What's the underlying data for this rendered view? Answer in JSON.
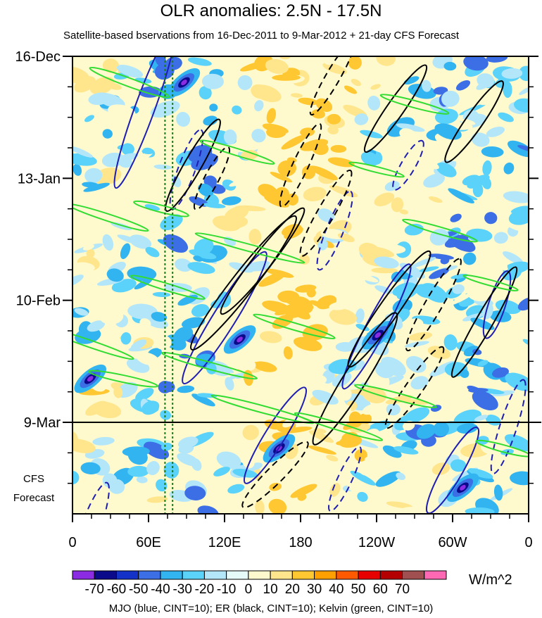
{
  "chart_data": {
    "type": "heatmap",
    "title": "OLR anomalies: 2.5N - 17.5N",
    "subtitle": "Satellite-based bservations from 16-Dec-2011 to 9-Mar-2012 + 21-day CFS Forecast",
    "x_tick_labels": [
      "0",
      "60E",
      "120E",
      "180",
      "120W",
      "60W",
      "0"
    ],
    "x_tick_longitudes": [
      0,
      60,
      120,
      180,
      240,
      300,
      360
    ],
    "x_range": [
      0,
      360
    ],
    "y_tick_labels": [
      "16-Dec",
      "13-Jan",
      "10-Feb",
      "9-Mar"
    ],
    "y_tick_days": [
      0,
      28,
      56,
      84
    ],
    "y_range_days": [
      0,
      105
    ],
    "forecast_start_day": 84,
    "forecast_label_lines": [
      "CFS",
      "Forecast"
    ],
    "reference_longitudes": [
      73,
      79
    ],
    "colorbar": {
      "labels": [
        "-70",
        "-60",
        "-50",
        "-40",
        "-30",
        "-20",
        "-10",
        "0",
        "10",
        "20",
        "30",
        "40",
        "50",
        "60",
        "70"
      ],
      "colors": [
        "#8b2be2",
        "#0a0a8a",
        "#1432c8",
        "#3c6ee6",
        "#32b4f0",
        "#5ad2fa",
        "#b4e6fa",
        "#e6fafa",
        "#fffacd",
        "#ffe68c",
        "#ffc832",
        "#ffa000",
        "#ff5a00",
        "#e60000",
        "#b40000",
        "#a05050",
        "#ff69b4"
      ],
      "units": "W/m^2"
    },
    "contour_note": "MJO (blue, CINT=10); ER (black, CINT=10); Kelvin (green, CINT=10)",
    "series": [
      {
        "name": "MJO",
        "color": "#1e1eb4"
      },
      {
        "name": "ER",
        "color": "#000000"
      },
      {
        "name": "Kelvin",
        "color": "#32dc32"
      }
    ]
  }
}
